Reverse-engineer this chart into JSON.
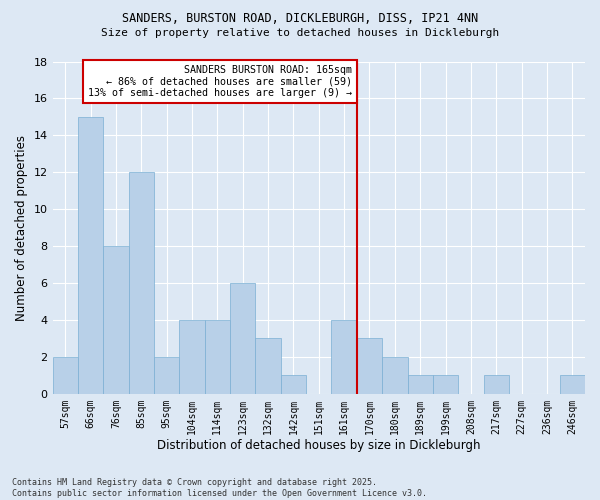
{
  "title_line1": "SANDERS, BURSTON ROAD, DICKLEBURGH, DISS, IP21 4NN",
  "title_line2": "Size of property relative to detached houses in Dickleburgh",
  "xlabel": "Distribution of detached houses by size in Dickleburgh",
  "ylabel": "Number of detached properties",
  "categories": [
    "57sqm",
    "66sqm",
    "76sqm",
    "85sqm",
    "95sqm",
    "104sqm",
    "114sqm",
    "123sqm",
    "132sqm",
    "142sqm",
    "151sqm",
    "161sqm",
    "170sqm",
    "180sqm",
    "189sqm",
    "199sqm",
    "208sqm",
    "217sqm",
    "227sqm",
    "236sqm",
    "246sqm"
  ],
  "values": [
    2,
    15,
    8,
    12,
    2,
    4,
    4,
    6,
    3,
    1,
    0,
    4,
    3,
    2,
    1,
    1,
    0,
    1,
    0,
    0,
    1
  ],
  "bar_color": "#b8d0e8",
  "bar_edge_color": "#7aafd4",
  "background_color": "#dde8f4",
  "grid_color": "#ffffff",
  "vline_x_index": 11.5,
  "vline_color": "#cc0000",
  "annotation_text": "SANDERS BURSTON ROAD: 165sqm\n← 86% of detached houses are smaller (59)\n13% of semi-detached houses are larger (9) →",
  "annotation_box_color": "#cc0000",
  "ylim": [
    0,
    18
  ],
  "yticks": [
    0,
    2,
    4,
    6,
    8,
    10,
    12,
    14,
    16,
    18
  ],
  "footnote": "Contains HM Land Registry data © Crown copyright and database right 2025.\nContains public sector information licensed under the Open Government Licence v3.0.",
  "fig_width": 6.0,
  "fig_height": 5.0,
  "dpi": 100
}
